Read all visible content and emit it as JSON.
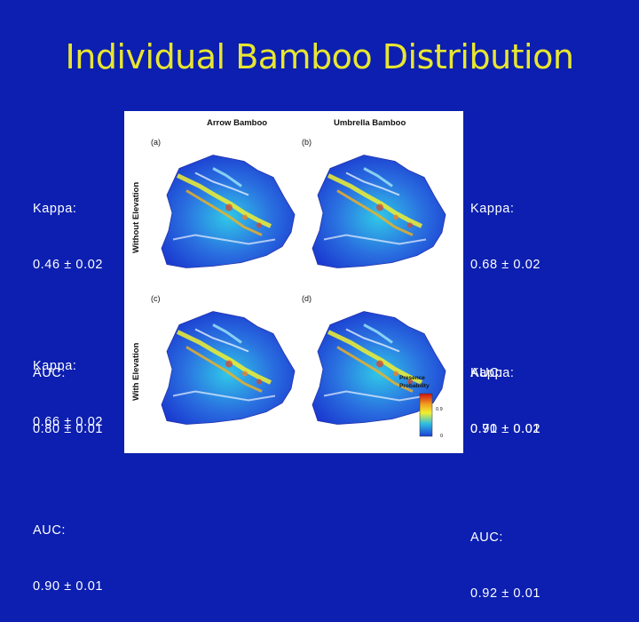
{
  "slide": {
    "title": "Individual Bamboo Distribution"
  },
  "stats": {
    "a": {
      "kappa_label": "Kappa:",
      "kappa_value": "0.46 ± 0.02",
      "auc_label": "AUC:",
      "auc_value": "0.80 ± 0.01"
    },
    "b": {
      "kappa_label": "Kappa:",
      "kappa_value": "0.68 ± 0.02",
      "auc_label": "AUC:",
      "auc_value": "0.91 ± 0.01"
    },
    "c": {
      "kappa_label": "Kappa:",
      "kappa_value": "0.66 ± 0.02",
      "auc_label": "AUC:",
      "auc_value": "0.90 ± 0.01"
    },
    "d": {
      "kappa_label": "Kappa:",
      "kappa_value": "0.70 ± 0.02",
      "auc_label": "AUC:",
      "auc_value": "0.92 ± 0.01"
    }
  },
  "figure": {
    "col_headers": [
      "Arrow Bamboo",
      "Umbrella Bamboo"
    ],
    "row_labels": [
      "Without Elevation",
      "With Elevation"
    ],
    "panel_labels": [
      "(a)",
      "(b)",
      "(c)",
      "(d)"
    ],
    "legend": {
      "title_line1": "Presence",
      "title_line2": "Probability",
      "tick_high": "0.9",
      "tick_low": "0",
      "colors": [
        "#d01010",
        "#f2a020",
        "#f0f030",
        "#30c0e0",
        "#1a40d8"
      ]
    }
  }
}
